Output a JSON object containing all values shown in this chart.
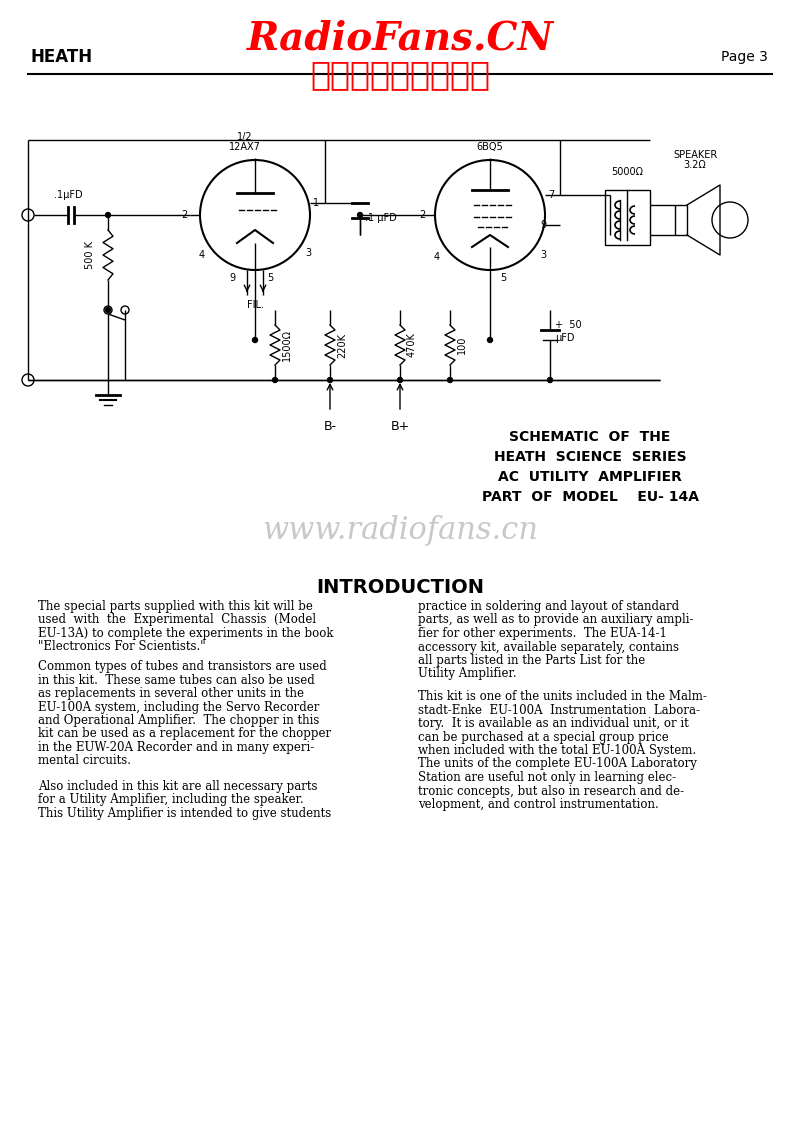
{
  "bg_color": "#ffffff",
  "header_heath": "HEATH",
  "header_page": "Page 3",
  "watermark_top": "RadioFans.CN",
  "watermark_cn": "收音机爱好者资料库",
  "watermark_url": "www.radiofans.cn",
  "schematic_title_line1": "SCHEMATIC  OF  THE",
  "schematic_title_line2": "HEATH  SCIENCE  SERIES",
  "schematic_title_line3": "AC  UTILITY  AMPLIFIER",
  "schematic_title_line4": "PART  OF  MODEL    EU- 14A",
  "intro_title": "INTRODUCTION",
  "intro_col1_para1": "The special parts supplied with this kit will be\nused  with  the  Experimental  Chassis  (Model\nEU-13A) to complete the experiments in the book\n\"Electronics For Scientists.\"",
  "intro_col1_para2": "Common types of tubes and transistors are used\nin this kit.  These same tubes can also be used\nas replacements in several other units in the\nEU-100A system, including the Servo Recorder\nand Operational Amplifier.  The chopper in this\nkit can be used as a replacement for the chopper\nin the EUW-20A Recorder and in many experi-\nmental circuits.",
  "intro_col1_para3": "Also included in this kit are all necessary parts\nfor a Utility Amplifier, including the speaker.\nThis Utility Amplifier is intended to give students",
  "intro_col2_para1": "practice in soldering and layout of standard\nparts, as well as to provide an auxiliary ampli-\nfier for other experiments.  The EUA-14-1\naccessory kit, available separately, contains\nall parts listed in the Parts List for the\nUtility Amplifier.",
  "intro_col2_para2": "This kit is one of the units included in the Malm-\nstadt-Enke  EU-100A  Instrumentation  Labora-\ntory.  It is available as an individual unit, or it\ncan be purchased at a special group price\nwhen included with the total EU-100A System.\nThe units of the complete EU-100A Laboratory\nStation are useful not only in learning elec-\ntronic concepts, but also in research and de-\nvelopment, and control instrumentation."
}
